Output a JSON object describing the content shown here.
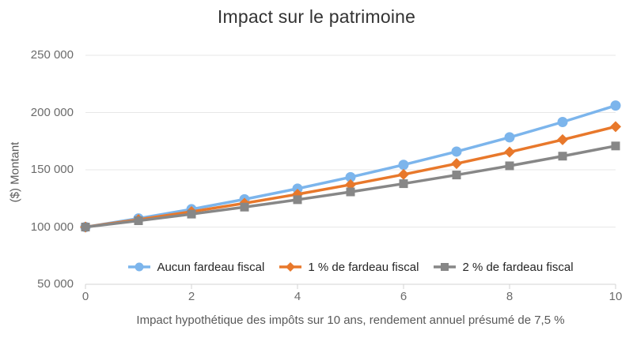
{
  "title": "Impact sur le patrimoine",
  "y_axis": {
    "title": "($) Montant",
    "ticks": [
      {
        "value": 250000,
        "label": "250 000"
      },
      {
        "value": 200000,
        "label": "200 000"
      },
      {
        "value": 150000,
        "label": "150 000"
      },
      {
        "value": 100000,
        "label": "100 000"
      },
      {
        "value": 50000,
        "label": "50 000"
      }
    ]
  },
  "x_axis": {
    "title": "Impact hypothétique des impôts sur 10 ans, rendement annuel présumé de 7,5 %",
    "ticks": [
      {
        "value": 0,
        "label": "0"
      },
      {
        "value": 2,
        "label": "2"
      },
      {
        "value": 4,
        "label": "4"
      },
      {
        "value": 6,
        "label": "6"
      },
      {
        "value": 8,
        "label": "8"
      },
      {
        "value": 10,
        "label": "10"
      }
    ]
  },
  "chart_data": {
    "type": "line",
    "title": "Impact sur le patrimoine",
    "xlabel": "Impact hypothétique des impôts sur 10 ans, rendement annuel présumé de 7,5 %",
    "ylabel": "($) Montant",
    "x": [
      0,
      1,
      2,
      3,
      4,
      5,
      6,
      7,
      8,
      9,
      10
    ],
    "xlim": [
      0,
      10
    ],
    "ylim": [
      50000,
      250000
    ],
    "grid": "horizontal",
    "legend_position": "bottom-center-inside",
    "series": [
      {
        "name": "Aucun fardeau fiscal",
        "color": "#7CB5EC",
        "marker": "circle",
        "values": [
          100000,
          107500,
          115563,
          124230,
          133547,
          143563,
          154330,
          165905,
          178348,
          191724,
          206103
        ]
      },
      {
        "name": "1 % de fardeau fiscal",
        "color": "#E8782B",
        "marker": "diamond",
        "values": [
          100000,
          106500,
          113423,
          120795,
          128647,
          137009,
          145914,
          155399,
          165500,
          176257,
          187714
        ]
      },
      {
        "name": "2 % de fardeau fiscal",
        "color": "#878787",
        "marker": "square",
        "values": [
          100000,
          105500,
          111303,
          117424,
          123882,
          130696,
          137884,
          145468,
          153469,
          161908,
          170814
        ]
      }
    ]
  },
  "style": {
    "gridline_color": "#e7e7e7",
    "axis_color": "#d3d3d3",
    "background": "#ffffff"
  }
}
